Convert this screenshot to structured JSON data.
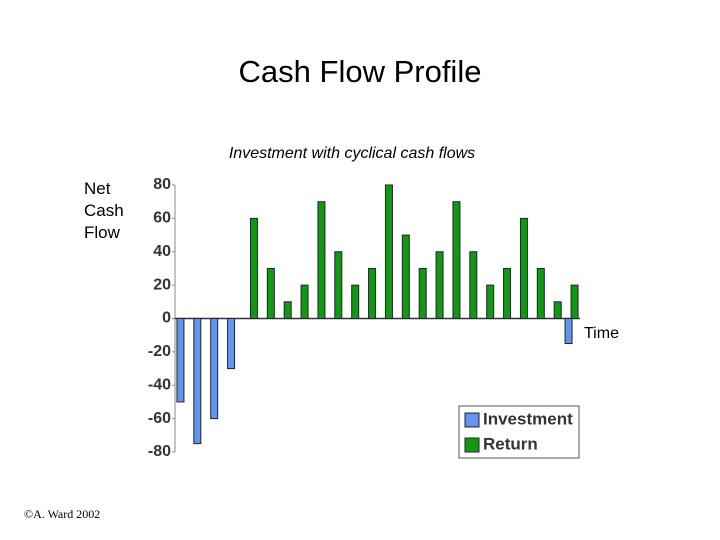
{
  "chart_data": {
    "type": "bar",
    "title": "Cash Flow Profile",
    "subtitle": "Investment with cyclical cash flows",
    "y_label": "Net Cash Flow",
    "x_label": "Time",
    "footer": "©A. Ward 2002",
    "categories": [
      null,
      null,
      null,
      null,
      null,
      null,
      null,
      null,
      null,
      null,
      null,
      null,
      null,
      null,
      null,
      null,
      null,
      null,
      null,
      null,
      null,
      null,
      null,
      null
    ],
    "series": [
      {
        "name": "Investment",
        "color": "#6495ed",
        "values": [
          -50,
          -75,
          -60,
          -30,
          null,
          null,
          null,
          null,
          null,
          null,
          null,
          null,
          null,
          null,
          null,
          null,
          null,
          null,
          null,
          null,
          null,
          null,
          null,
          -15
        ]
      },
      {
        "name": "Return",
        "color": "#119911",
        "values": [
          null,
          null,
          null,
          null,
          60,
          30,
          10,
          20,
          70,
          40,
          20,
          30,
          80,
          50,
          30,
          40,
          70,
          40,
          20,
          30,
          60,
          30,
          10,
          20
        ]
      }
    ],
    "ylim": [
      -80,
      80
    ],
    "yticks": [
      -80,
      -60,
      -40,
      -20,
      0,
      20,
      40,
      60,
      80
    ],
    "legend": "bottom-right"
  }
}
